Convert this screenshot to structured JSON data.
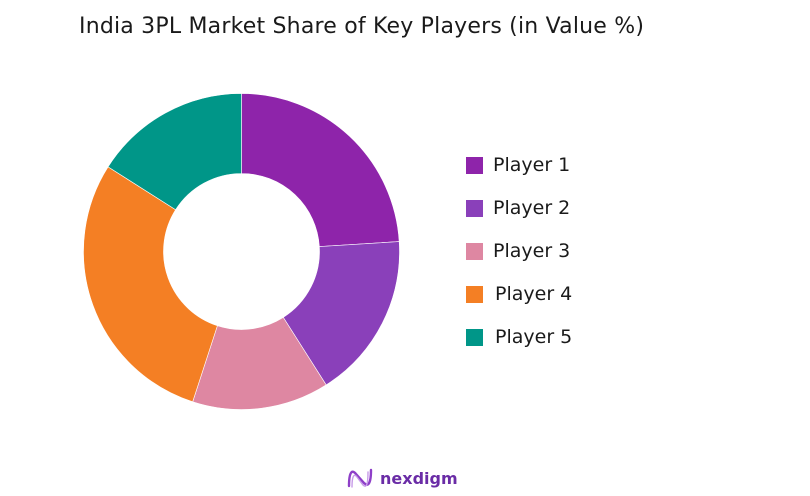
{
  "title": "India 3PL Market Share of Key Players (in Value %)",
  "chart_data": {
    "type": "pie",
    "variant": "donut",
    "title": "India 3PL Market Share of Key Players (in Value %)",
    "categories": [
      "Player 1",
      "Player 2",
      "Player 3",
      "Player 4",
      "Player 5"
    ],
    "values": [
      24,
      17,
      14,
      29,
      16
    ],
    "colors": [
      "#8E24AA",
      "#8A40BA",
      "#DE87A2",
      "#F47F24",
      "#009688"
    ],
    "start_angle_deg": 0,
    "direction": "clockwise",
    "legend_position": "right",
    "unit": "%"
  },
  "legend": {
    "items": [
      {
        "label": "Player 1",
        "color": "#8E24AA"
      },
      {
        "label": "Player 2",
        "color": "#8A40BA"
      },
      {
        "label": "Player 3",
        "color": "#DE87A2"
      },
      {
        "label": "Player 4",
        "color": "#F47F24"
      },
      {
        "label": "Player 5",
        "color": "#009688"
      }
    ]
  },
  "brand": {
    "name": "nexdigm",
    "color": "#6A2CA6"
  }
}
